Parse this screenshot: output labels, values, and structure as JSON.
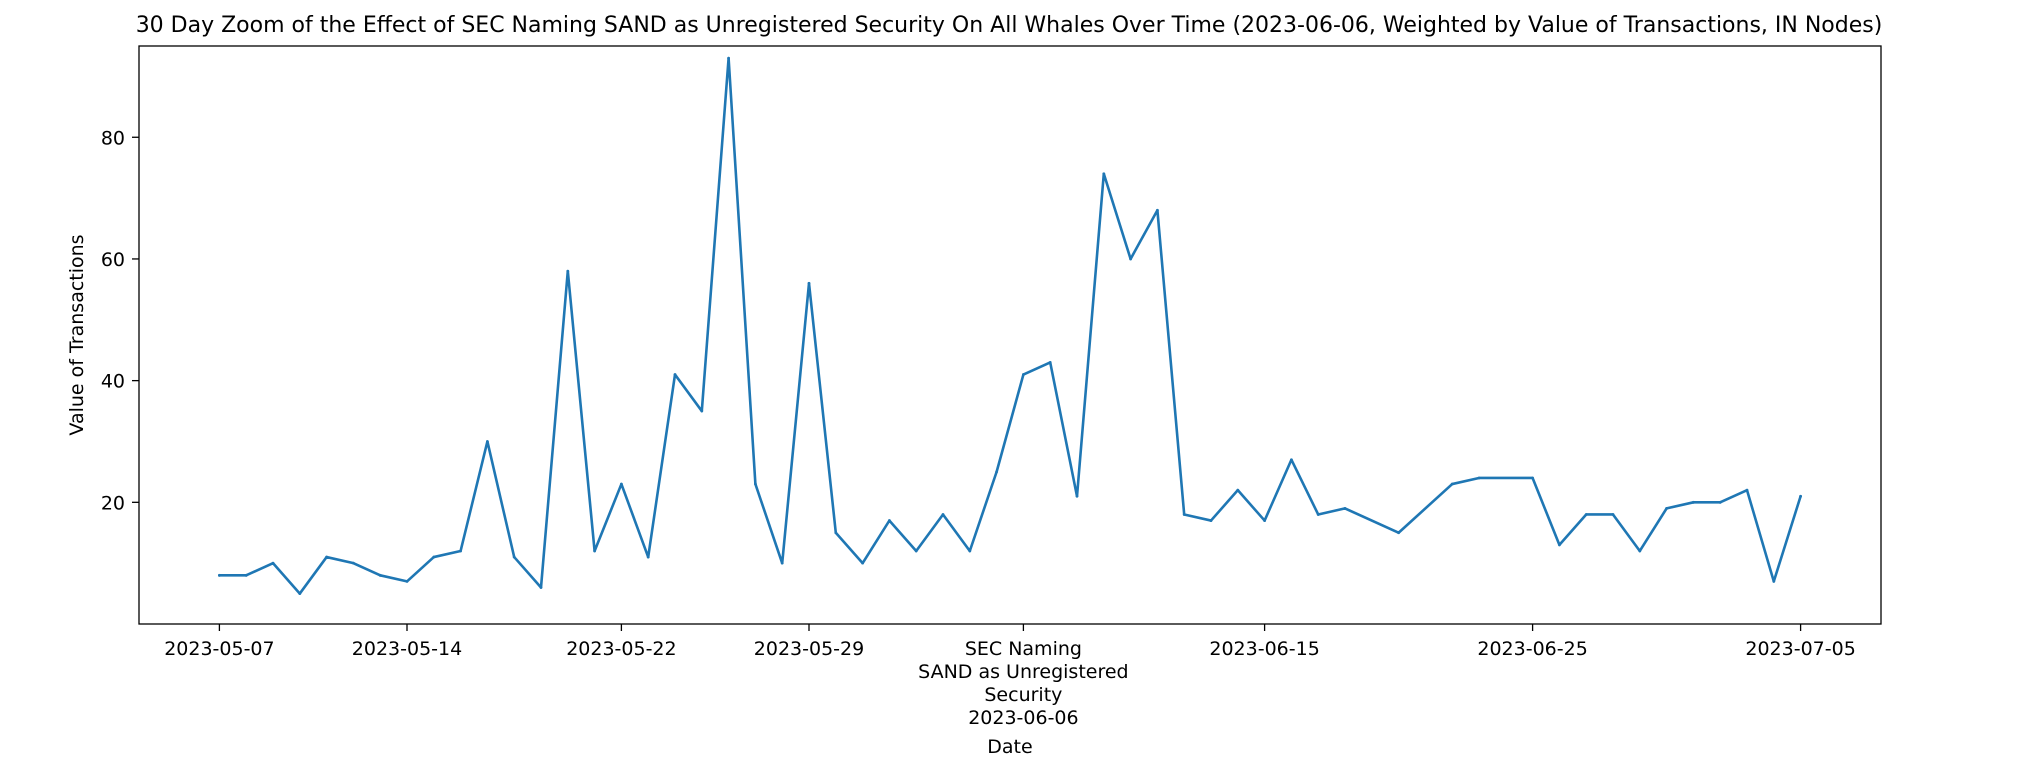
{
  "chart_data": {
    "type": "line",
    "title": "30 Day Zoom of the Effect of SEC Naming SAND as Unregistered Security On All Whales Over Time (2023-06-06, Weighted by Value of Transactions, IN Nodes)",
    "xlabel": "Date",
    "ylabel": "Value of Transactions",
    "xlim": [
      "2023-05-04",
      "2023-07-08"
    ],
    "ylim": [
      0,
      95
    ],
    "grid": false,
    "x_ticks": [
      {
        "date": "2023-05-07",
        "lines": [
          "2023-05-07"
        ]
      },
      {
        "date": "2023-05-14",
        "lines": [
          "2023-05-14"
        ]
      },
      {
        "date": "2023-05-22",
        "lines": [
          "2023-05-22"
        ]
      },
      {
        "date": "2023-05-29",
        "lines": [
          "2023-05-29"
        ]
      },
      {
        "date": "2023-06-06",
        "lines": [
          "SEC Naming",
          "SAND as Unregistered",
          "Security",
          "2023-06-06"
        ]
      },
      {
        "date": "2023-06-15",
        "lines": [
          "2023-06-15"
        ]
      },
      {
        "date": "2023-06-25",
        "lines": [
          "2023-06-25"
        ]
      },
      {
        "date": "2023-07-05",
        "lines": [
          "2023-07-05"
        ]
      }
    ],
    "y_ticks": [
      20,
      40,
      60,
      80
    ],
    "series": [
      {
        "color": "#1f77b4",
        "points": [
          [
            "2023-05-07",
            8
          ],
          [
            "2023-05-08",
            8
          ],
          [
            "2023-05-09",
            10
          ],
          [
            "2023-05-10",
            5
          ],
          [
            "2023-05-11",
            11
          ],
          [
            "2023-05-12",
            10
          ],
          [
            "2023-05-13",
            8
          ],
          [
            "2023-05-14",
            7
          ],
          [
            "2023-05-15",
            11
          ],
          [
            "2023-05-16",
            12
          ],
          [
            "2023-05-17",
            30
          ],
          [
            "2023-05-18",
            11
          ],
          [
            "2023-05-19",
            6
          ],
          [
            "2023-05-20",
            58
          ],
          [
            "2023-05-21",
            12
          ],
          [
            "2023-05-22",
            23
          ],
          [
            "2023-05-23",
            11
          ],
          [
            "2023-05-24",
            41
          ],
          [
            "2023-05-25",
            35
          ],
          [
            "2023-05-26",
            93
          ],
          [
            "2023-05-27",
            23
          ],
          [
            "2023-05-28",
            10
          ],
          [
            "2023-05-29",
            56
          ],
          [
            "2023-05-30",
            15
          ],
          [
            "2023-05-31",
            10
          ],
          [
            "2023-06-01",
            17
          ],
          [
            "2023-06-02",
            12
          ],
          [
            "2023-06-03",
            18
          ],
          [
            "2023-06-04",
            12
          ],
          [
            "2023-06-05",
            25
          ],
          [
            "2023-06-06",
            41
          ],
          [
            "2023-06-07",
            43
          ],
          [
            "2023-06-08",
            21
          ],
          [
            "2023-06-09",
            74
          ],
          [
            "2023-06-10",
            60
          ],
          [
            "2023-06-11",
            68
          ],
          [
            "2023-06-12",
            18
          ],
          [
            "2023-06-13",
            17
          ],
          [
            "2023-06-14",
            22
          ],
          [
            "2023-06-15",
            17
          ],
          [
            "2023-06-16",
            27
          ],
          [
            "2023-06-17",
            18
          ],
          [
            "2023-06-18",
            19
          ],
          [
            "2023-06-20",
            15
          ],
          [
            "2023-06-22",
            23
          ],
          [
            "2023-06-23",
            24
          ],
          [
            "2023-06-25",
            24
          ],
          [
            "2023-06-26",
            13
          ],
          [
            "2023-06-27",
            18
          ],
          [
            "2023-06-28",
            18
          ],
          [
            "2023-06-29",
            12
          ],
          [
            "2023-06-30",
            19
          ],
          [
            "2023-07-01",
            20
          ],
          [
            "2023-07-02",
            20
          ],
          [
            "2023-07-03",
            22
          ],
          [
            "2023-07-04",
            7
          ],
          [
            "2023-07-05",
            21
          ]
        ]
      }
    ]
  }
}
